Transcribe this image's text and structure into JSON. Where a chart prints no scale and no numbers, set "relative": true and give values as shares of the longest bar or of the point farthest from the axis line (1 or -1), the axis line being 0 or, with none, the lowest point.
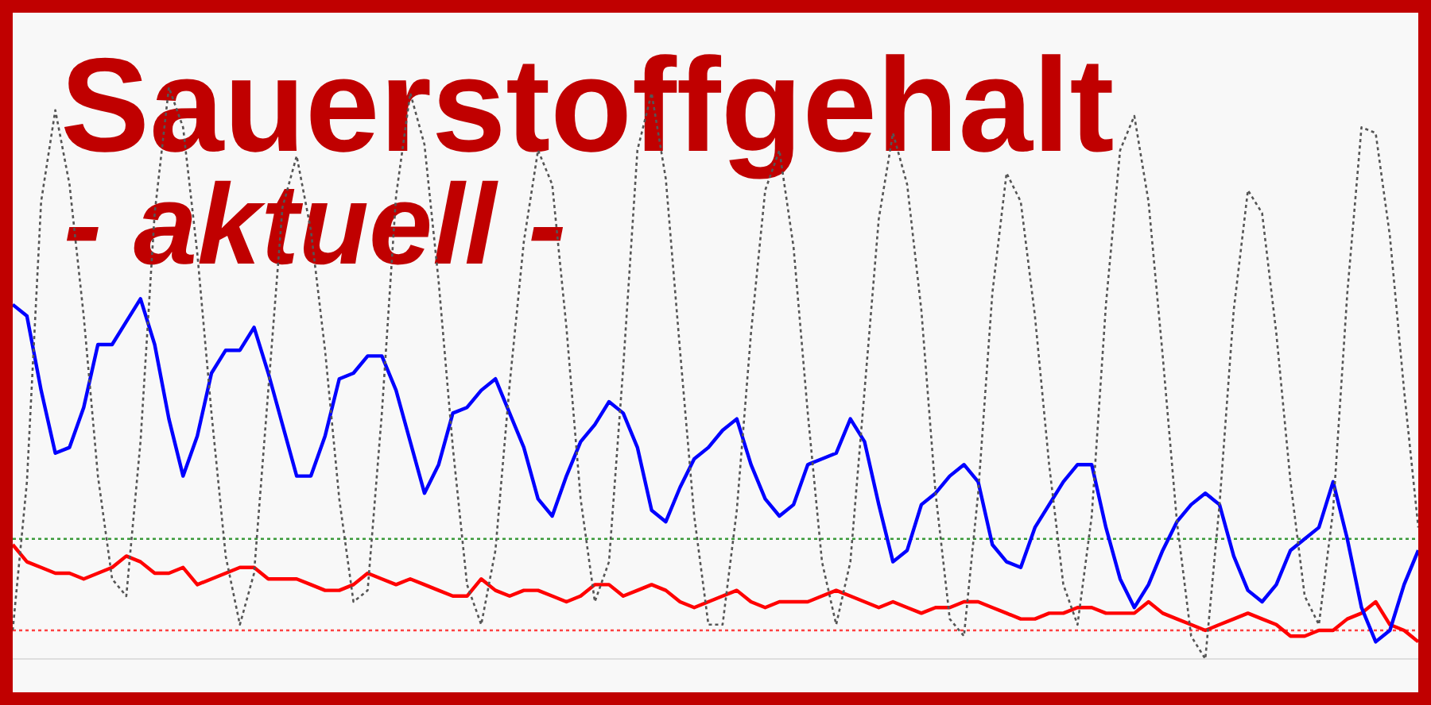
{
  "chart_data": {
    "type": "line",
    "title": "Sauerstoffgehalt",
    "subtitle": "- aktuell -",
    "relative": true,
    "legend": false,
    "categories": [
      null,
      null,
      null,
      null,
      null,
      null,
      null,
      null,
      null,
      null,
      null,
      null,
      null,
      null,
      null,
      null,
      null,
      null,
      null,
      null,
      null,
      null,
      null,
      null,
      null,
      null,
      null,
      null,
      null,
      null,
      null,
      null,
      null,
      null,
      null,
      null,
      null,
      null,
      null,
      null,
      null,
      null,
      null,
      null,
      null,
      null,
      null,
      null,
      null,
      null,
      null,
      null,
      null,
      null,
      null,
      null,
      null,
      null,
      null,
      null,
      null,
      null,
      null,
      null,
      null,
      null,
      null,
      null,
      null,
      null,
      null,
      null,
      null,
      null,
      null,
      null,
      null,
      null,
      null,
      null,
      null,
      null,
      null,
      null,
      null,
      null,
      null,
      null,
      null,
      null,
      null,
      null,
      null,
      null,
      null,
      null,
      null,
      null,
      null,
      null
    ],
    "series": [
      {
        "color": "#555555",
        "line_style": "dotted",
        "values": [
          0.05,
          0.31,
          0.8,
          0.96,
          0.83,
          0.6,
          0.32,
          0.14,
          0.11,
          0.38,
          0.78,
          1.0,
          0.93,
          0.71,
          0.43,
          0.18,
          0.06,
          0.15,
          0.47,
          0.79,
          0.88,
          0.75,
          0.54,
          0.28,
          0.1,
          0.12,
          0.43,
          0.81,
          0.99,
          0.9,
          0.66,
          0.37,
          0.13,
          0.06,
          0.19,
          0.48,
          0.73,
          0.89,
          0.83,
          0.58,
          0.28,
          0.1,
          0.17,
          0.51,
          0.89,
          0.99,
          0.84,
          0.54,
          0.25,
          0.06,
          0.06,
          0.26,
          0.57,
          0.82,
          0.89,
          0.72,
          0.43,
          0.17,
          0.06,
          0.17,
          0.47,
          0.77,
          0.92,
          0.83,
          0.61,
          0.29,
          0.07,
          0.04,
          0.29,
          0.64,
          0.85,
          0.8,
          0.6,
          0.34,
          0.13,
          0.06,
          0.25,
          0.62,
          0.89,
          0.95,
          0.8,
          0.53,
          0.24,
          0.04,
          0,
          0.27,
          0.61,
          0.82,
          0.78,
          0.57,
          0.31,
          0.11,
          0.06,
          0.26,
          0.64,
          0.93,
          0.92,
          0.74,
          0.47,
          0.23
        ]
      },
      {
        "color": "#0000ff",
        "line_style": "solid",
        "values": [
          0.62,
          0.6,
          0.47,
          0.36,
          0.37,
          0.44,
          0.55,
          0.55,
          0.59,
          0.63,
          0.55,
          0.42,
          0.32,
          0.39,
          0.5,
          0.54,
          0.54,
          0.58,
          0.5,
          0.41,
          0.32,
          0.32,
          0.39,
          0.49,
          0.5,
          0.53,
          0.53,
          0.47,
          0.38,
          0.29,
          0.34,
          0.43,
          0.44,
          0.47,
          0.49,
          0.43,
          0.37,
          0.28,
          0.25,
          0.32,
          0.38,
          0.41,
          0.45,
          0.43,
          0.37,
          0.26,
          0.24,
          0.3,
          0.35,
          0.37,
          0.4,
          0.42,
          0.34,
          0.28,
          0.25,
          0.27,
          0.34,
          0.35,
          0.36,
          0.42,
          0.38,
          0.27,
          0.17,
          0.19,
          0.27,
          0.29,
          0.32,
          0.34,
          0.31,
          0.2,
          0.17,
          0.16,
          0.23,
          0.27,
          0.31,
          0.34,
          0.34,
          0.23,
          0.14,
          0.09,
          0.13,
          0.19,
          0.24,
          0.27,
          0.29,
          0.27,
          0.18,
          0.12,
          0.1,
          0.13,
          0.19,
          0.21,
          0.23,
          0.31,
          0.21,
          0.09,
          0.03,
          0.05,
          0.13,
          0.19
        ]
      },
      {
        "color": "#ff0000",
        "line_style": "solid",
        "values": [
          0.2,
          0.17,
          0.16,
          0.15,
          0.15,
          0.14,
          0.15,
          0.16,
          0.18,
          0.17,
          0.15,
          0.15,
          0.16,
          0.13,
          0.14,
          0.15,
          0.16,
          0.16,
          0.14,
          0.14,
          0.14,
          0.13,
          0.12,
          0.12,
          0.13,
          0.15,
          0.14,
          0.13,
          0.14,
          0.13,
          0.12,
          0.11,
          0.11,
          0.14,
          0.12,
          0.11,
          0.12,
          0.12,
          0.11,
          0.1,
          0.11,
          0.13,
          0.13,
          0.11,
          0.12,
          0.13,
          0.12,
          0.1,
          0.09,
          0.1,
          0.11,
          0.12,
          0.1,
          0.09,
          0.1,
          0.1,
          0.1,
          0.11,
          0.12,
          0.11,
          0.1,
          0.09,
          0.1,
          0.09,
          0.08,
          0.09,
          0.09,
          0.1,
          0.1,
          0.09,
          0.08,
          0.07,
          0.07,
          0.08,
          0.08,
          0.09,
          0.09,
          0.08,
          0.08,
          0.08,
          0.1,
          0.08,
          0.07,
          0.06,
          0.05,
          0.06,
          0.07,
          0.08,
          0.07,
          0.06,
          0.04,
          0.04,
          0.05,
          0.05,
          0.07,
          0.08,
          0.1,
          0.06,
          0.05,
          0.03
        ]
      }
    ],
    "ref_lines": [
      {
        "axis": "y",
        "value": 0.21,
        "color": "#3a9a3a",
        "line_style": "dotted"
      },
      {
        "axis": "y",
        "value": 0.05,
        "color": "#ff4040",
        "line_style": "dotted"
      }
    ]
  }
}
